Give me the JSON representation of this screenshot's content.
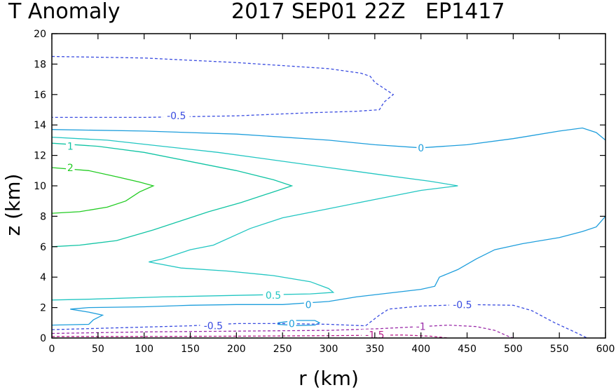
{
  "chart_data": {
    "type": "contour",
    "title": {
      "left": "T Anomaly",
      "right": "2017 SEP01 22Z   EP1417"
    },
    "xlabel": "r (km)",
    "ylabel": "z (km)",
    "xlim": [
      0,
      600
    ],
    "ylim": [
      0,
      20
    ],
    "xticks": [
      0,
      50,
      100,
      150,
      200,
      250,
      300,
      350,
      400,
      450,
      500,
      550,
      600
    ],
    "yticks": [
      0,
      2,
      4,
      6,
      8,
      10,
      12,
      14,
      16,
      18,
      20
    ],
    "xtick_labels": [
      "0",
      "50",
      "100",
      "150",
      "200",
      "250",
      "300",
      "350",
      "400",
      "450",
      "500",
      "550",
      "600"
    ],
    "ytick_labels": [
      "0",
      "2",
      "4",
      "6",
      "8",
      "10",
      "12",
      "14",
      "16",
      "18",
      "20"
    ],
    "colors": {
      "c2": "#22cc22",
      "c1": "#11c4a4",
      "c05": "#22c6c2",
      "c0": "#1e9edc",
      "cm05": "#3a4ce0",
      "cm1": "#9a2aa8",
      "cm15": "#b81e8a"
    },
    "contours": [
      {
        "level": "2",
        "color": "c2",
        "dashed": false,
        "points": [
          [
            0,
            11.2
          ],
          [
            40,
            11.0
          ],
          [
            70,
            10.6
          ],
          [
            95,
            10.25
          ],
          [
            110,
            10.0
          ],
          [
            95,
            9.6
          ],
          [
            80,
            9.0
          ],
          [
            60,
            8.6
          ],
          [
            30,
            8.3
          ],
          [
            0,
            8.2
          ]
        ]
      },
      {
        "level": "1",
        "color": "c1",
        "dashed": false,
        "points": [
          [
            0,
            12.8
          ],
          [
            50,
            12.6
          ],
          [
            100,
            12.2
          ],
          [
            150,
            11.6
          ],
          [
            200,
            11.0
          ],
          [
            240,
            10.4
          ],
          [
            260,
            10.0
          ],
          [
            240,
            9.6
          ],
          [
            205,
            8.9
          ],
          [
            170,
            8.3
          ],
          [
            140,
            7.7
          ],
          [
            110,
            7.1
          ],
          [
            70,
            6.4
          ],
          [
            30,
            6.1
          ],
          [
            0,
            6.0
          ]
        ]
      },
      {
        "level": "0.5",
        "color": "c05",
        "dashed": false,
        "points": [
          [
            0,
            13.2
          ],
          [
            60,
            13.0
          ],
          [
            120,
            12.6
          ],
          [
            180,
            12.2
          ],
          [
            240,
            11.7
          ],
          [
            300,
            11.2
          ],
          [
            360,
            10.7
          ],
          [
            410,
            10.3
          ],
          [
            440,
            10.0
          ],
          [
            400,
            9.7
          ],
          [
            350,
            9.1
          ],
          [
            300,
            8.5
          ],
          [
            250,
            7.9
          ],
          [
            215,
            7.2
          ],
          [
            175,
            6.1
          ],
          [
            150,
            5.8
          ],
          [
            120,
            5.2
          ],
          [
            105,
            5.0
          ],
          [
            140,
            4.6
          ],
          [
            190,
            4.4
          ],
          [
            240,
            4.1
          ],
          [
            280,
            3.7
          ],
          [
            300,
            3.25
          ],
          [
            305,
            3.0
          ],
          [
            280,
            2.9
          ],
          [
            200,
            2.8
          ],
          [
            120,
            2.7
          ],
          [
            40,
            2.55
          ],
          [
            0,
            2.5
          ]
        ]
      },
      {
        "level": "0",
        "color": "c0",
        "dashed": false,
        "points": [
          [
            0,
            13.7
          ],
          [
            100,
            13.6
          ],
          [
            200,
            13.4
          ],
          [
            300,
            13.0
          ],
          [
            350,
            12.7
          ],
          [
            400,
            12.5
          ],
          [
            450,
            12.7
          ],
          [
            500,
            13.1
          ],
          [
            550,
            13.6
          ],
          [
            575,
            13.8
          ],
          [
            590,
            13.5
          ],
          [
            600,
            13.0
          ]
        ]
      },
      {
        "level": "0",
        "color": "c0",
        "dashed": false,
        "points": [
          [
            600,
            8.0
          ],
          [
            590,
            7.3
          ],
          [
            575,
            7.0
          ],
          [
            550,
            6.6
          ],
          [
            510,
            6.2
          ],
          [
            480,
            5.8
          ],
          [
            460,
            5.2
          ],
          [
            440,
            4.5
          ],
          [
            420,
            4.0
          ],
          [
            415,
            3.4
          ],
          [
            400,
            3.2
          ],
          [
            330,
            2.7
          ],
          [
            300,
            2.4
          ],
          [
            250,
            2.2
          ],
          [
            200,
            2.2
          ],
          [
            150,
            2.15
          ],
          [
            100,
            2.05
          ],
          [
            40,
            2.0
          ],
          [
            20,
            1.9
          ],
          [
            40,
            1.7
          ],
          [
            55,
            1.5
          ],
          [
            45,
            1.2
          ],
          [
            40,
            0.9
          ],
          [
            0,
            0.85
          ]
        ]
      },
      {
        "level": "0",
        "color": "c0",
        "dashed": false,
        "points": [
          [
            245,
            1.0
          ],
          [
            265,
            1.15
          ],
          [
            285,
            1.15
          ],
          [
            290,
            1.0
          ],
          [
            285,
            0.85
          ],
          [
            265,
            0.82
          ],
          [
            245,
            0.9
          ],
          [
            245,
            1.0
          ]
        ]
      },
      {
        "level": "-0.5",
        "color": "cm05",
        "dashed": true,
        "points": [
          [
            0,
            18.5
          ],
          [
            100,
            18.4
          ],
          [
            200,
            18.1
          ],
          [
            300,
            17.7
          ],
          [
            335,
            17.4
          ],
          [
            345,
            17.2
          ],
          [
            350,
            16.8
          ],
          [
            370,
            16.0
          ],
          [
            360,
            15.5
          ],
          [
            355,
            15.0
          ],
          [
            330,
            14.9
          ],
          [
            280,
            14.8
          ],
          [
            200,
            14.6
          ],
          [
            100,
            14.5
          ],
          [
            0,
            14.5
          ]
        ]
      },
      {
        "level": "-0.5",
        "color": "cm05",
        "dashed": true,
        "points": [
          [
            0,
            0.55
          ],
          [
            150,
            0.8
          ],
          [
            200,
            0.95
          ],
          [
            250,
            0.95
          ],
          [
            300,
            0.9
          ],
          [
            340,
            0.8
          ],
          [
            355,
            1.5
          ],
          [
            365,
            1.9
          ],
          [
            400,
            2.1
          ],
          [
            450,
            2.2
          ],
          [
            500,
            2.15
          ],
          [
            520,
            1.8
          ],
          [
            545,
            1.0
          ],
          [
            570,
            0.3
          ],
          [
            580,
            0.0
          ]
        ]
      },
      {
        "level": "-1",
        "color": "cm1",
        "dashed": true,
        "points": [
          [
            0,
            0.3
          ],
          [
            100,
            0.4
          ],
          [
            200,
            0.45
          ],
          [
            300,
            0.5
          ],
          [
            350,
            0.6
          ],
          [
            400,
            0.75
          ],
          [
            430,
            0.85
          ],
          [
            460,
            0.75
          ],
          [
            480,
            0.5
          ],
          [
            495,
            0.1
          ],
          [
            500,
            0.0
          ]
        ]
      },
      {
        "level": "-1.5",
        "color": "cm15",
        "dashed": true,
        "points": [
          [
            0,
            0.1
          ],
          [
            100,
            0.1
          ],
          [
            200,
            0.12
          ],
          [
            300,
            0.15
          ],
          [
            380,
            0.2
          ],
          [
            410,
            0.12
          ],
          [
            430,
            0.0
          ]
        ]
      }
    ],
    "contour_labels": [
      {
        "text": "2",
        "color": "c2",
        "x": 20,
        "y": 11.2
      },
      {
        "text": "1",
        "color": "c1",
        "x": 20,
        "y": 12.6
      },
      {
        "text": "0.5",
        "color": "c05",
        "x": 240,
        "y": 2.8
      },
      {
        "text": "0",
        "color": "c0",
        "x": 400,
        "y": 12.5
      },
      {
        "text": "0",
        "color": "c0",
        "x": 278,
        "y": 2.2
      },
      {
        "text": "0",
        "color": "c0",
        "x": 260,
        "y": 0.95
      },
      {
        "text": "-0.5",
        "color": "cm05",
        "x": 135,
        "y": 14.6
      },
      {
        "text": "-0.5",
        "color": "cm05",
        "x": 175,
        "y": 0.8
      },
      {
        "text": "-0.5",
        "color": "cm05",
        "x": 445,
        "y": 2.2
      },
      {
        "text": "-1",
        "color": "cm1",
        "x": 400,
        "y": 0.75
      },
      {
        "text": "-1.5",
        "color": "cm15",
        "x": 350,
        "y": 0.2
      }
    ]
  }
}
